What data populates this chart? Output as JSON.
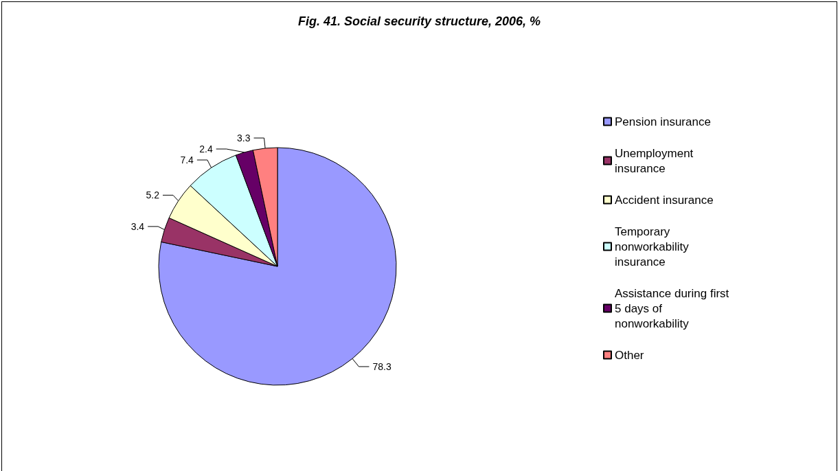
{
  "chart_data": {
    "type": "pie",
    "title": "Fig. 41. Social security structure, 2006, %",
    "categories": [
      "Pension insurance",
      "Unemployment insurance",
      "Accident insurance",
      "Temporary nonworkability insurance",
      "Assistance during first 5 days of nonworkability",
      "Other"
    ],
    "values": [
      78.3,
      3.4,
      5.2,
      7.4,
      2.4,
      3.3
    ],
    "colors": [
      "#9999ff",
      "#993366",
      "#ffffcc",
      "#ccffff",
      "#660066",
      "#ff8080"
    ],
    "data_labels": true,
    "legend": "right"
  }
}
